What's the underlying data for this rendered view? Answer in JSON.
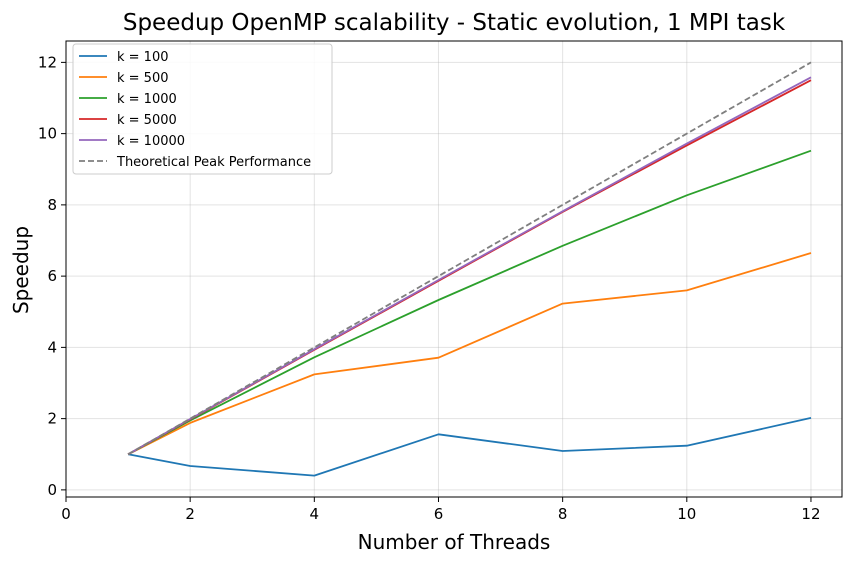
{
  "chart_data": {
    "type": "line",
    "title": "Speedup OpenMP scalability - Static evolution, 1 MPI task",
    "xlabel": "Number of Threads",
    "ylabel": "Speedup",
    "xlim": [
      0,
      12.5
    ],
    "ylim": [
      -0.2,
      12.6
    ],
    "xticks": [
      0,
      2,
      4,
      6,
      8,
      10,
      12
    ],
    "yticks": [
      0,
      2,
      4,
      6,
      8,
      10,
      12
    ],
    "grid": true,
    "legend_position": "top-left",
    "x": [
      1,
      2,
      4,
      6,
      8,
      10,
      12
    ],
    "series": [
      {
        "name": "k = 100",
        "color": "#1f77b4",
        "dashed": false,
        "values": [
          1.0,
          0.67,
          0.4,
          1.56,
          1.09,
          1.24,
          2.02
        ]
      },
      {
        "name": "k = 500",
        "color": "#ff7f0e",
        "dashed": false,
        "values": [
          1.0,
          1.88,
          3.24,
          3.71,
          5.23,
          5.6,
          6.65
        ]
      },
      {
        "name": "k = 1000",
        "color": "#2ca02c",
        "dashed": false,
        "values": [
          1.0,
          1.95,
          3.72,
          5.33,
          6.85,
          8.27,
          9.52
        ]
      },
      {
        "name": "k = 5000",
        "color": "#d62728",
        "dashed": false,
        "values": [
          1.0,
          1.98,
          3.93,
          5.87,
          7.8,
          9.67,
          11.5
        ]
      },
      {
        "name": "k = 10000",
        "color": "#9467bd",
        "dashed": false,
        "values": [
          1.0,
          1.99,
          3.95,
          5.89,
          7.82,
          9.72,
          11.58
        ]
      },
      {
        "name": "Theoretical Peak Performance",
        "color": "#7f7f7f",
        "dashed": true,
        "values": [
          1,
          2,
          4,
          6,
          8,
          10,
          12
        ]
      }
    ]
  }
}
